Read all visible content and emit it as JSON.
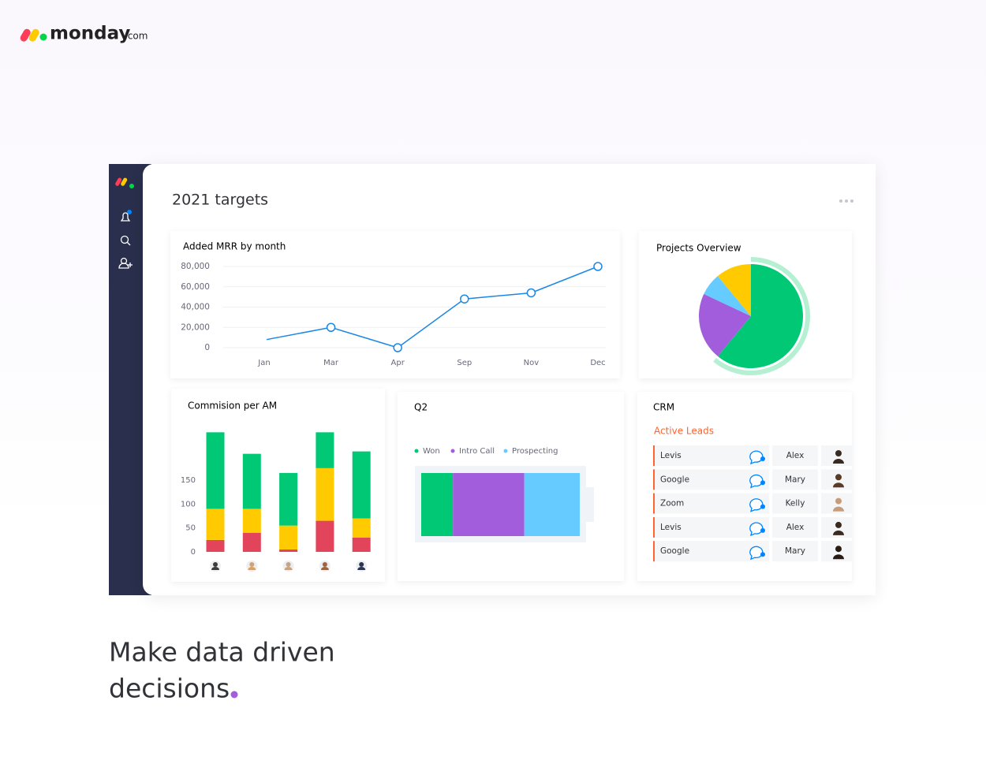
{
  "logo": {
    "brand": "monday",
    "suffix": ".com"
  },
  "dashboard": {
    "title": "2021 targets"
  },
  "chart_data": [
    {
      "type": "line",
      "title": "Added MRR by month",
      "categories": [
        "Jan",
        "Mar",
        "Apr",
        "Sep",
        "Nov",
        "Dec"
      ],
      "values": [
        8000,
        20000,
        0,
        48000,
        54000,
        80000
      ],
      "color": "#1b87e6",
      "ylim": [
        0,
        80000
      ],
      "yticks": [
        0,
        {
          "value": 20000,
          "label": "20,000"
        },
        {
          "value": 40000,
          "label": "40,000"
        },
        {
          "value": 60000,
          "label": "60,000"
        },
        {
          "value": 80000,
          "label": "80,000"
        }
      ],
      "grid": true
    },
    {
      "type": "pie",
      "title": "Projects Overview",
      "values": [
        61,
        21,
        7,
        11
      ],
      "colors": [
        "#00c875",
        "#a25ddc",
        "#66ccff",
        "#ffcb00"
      ]
    },
    {
      "type": "stacked_bar",
      "title": "Commision per AM",
      "categories": [
        null,
        null,
        null,
        null,
        null
      ],
      "series": [
        {
          "color": "#e2445c",
          "values": [
            25,
            40,
            5,
            65,
            30
          ]
        },
        {
          "color": "#ffcb00",
          "values": [
            65,
            50,
            50,
            110,
            40
          ]
        },
        {
          "color": "#00c875",
          "values": [
            160,
            115,
            110,
            75,
            140
          ]
        }
      ],
      "ylim": [
        0,
        260
      ],
      "yticks": [
        0,
        50,
        100,
        150
      ]
    },
    {
      "type": "stacked_hbar",
      "title": "Q2",
      "series": [
        {
          "name": "Won",
          "color": "#00c875",
          "values": [
            20
          ]
        },
        {
          "name": "Intro Call",
          "color": "#a25ddc",
          "values": [
            45
          ]
        },
        {
          "name": "Prospecting",
          "color": "#66ccff",
          "values": [
            35
          ]
        }
      ],
      "xlim": [
        0,
        100
      ]
    }
  ],
  "crm": {
    "title": "CRM",
    "subtitle": "Active Leads",
    "rows": [
      [
        "Levis",
        "Alex"
      ],
      [
        "Google",
        "Mary"
      ],
      [
        "Zoom",
        "Kelly"
      ],
      [
        "Levis",
        "Alex"
      ],
      [
        "Google",
        "Mary"
      ]
    ]
  },
  "tagline": [
    "Make data driven",
    "decisions"
  ]
}
